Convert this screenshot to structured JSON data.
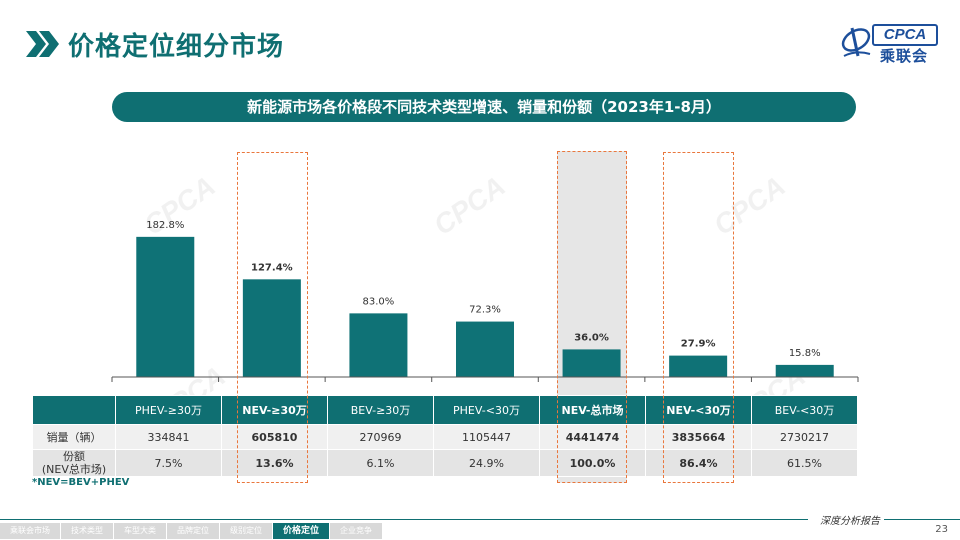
{
  "header": {
    "title": "价格定位细分市场"
  },
  "logo": {
    "text_en": "CPCA",
    "text_cn": "乘联会"
  },
  "subtitle": "新能源市场各价格段不同技术类型增速、销量和份额（2023年1-8月）",
  "chart_data": {
    "type": "bar",
    "title": "新能源市场各价格段不同技术类型增速、销量和份额（2023年1-8月）",
    "categories": [
      "PHEV-≥30万",
      "NEV-≥30万",
      "BEV-≥30万",
      "PHEV-<30万",
      "NEV-总市场",
      "NEV-<30万",
      "BEV-<30万"
    ],
    "values": [
      182.8,
      127.4,
      83.0,
      72.3,
      36.0,
      27.9,
      15.8
    ],
    "value_labels": [
      "182.8%",
      "127.4%",
      "83.0%",
      "72.3%",
      "36.0%",
      "27.9%",
      "15.8%"
    ],
    "bold": [
      false,
      true,
      false,
      false,
      true,
      true,
      false
    ],
    "ylim": [
      0,
      300
    ],
    "bar_color": "#0f7276",
    "grid": false
  },
  "table": {
    "headers": [
      "",
      "PHEV-≥30万",
      "NEV-≥30万",
      "BEV-≥30万",
      "PHEV-<30万",
      "NEV-总市场",
      "NEV-<30万",
      "BEV-<30万"
    ],
    "header_bold": [
      false,
      false,
      true,
      false,
      false,
      true,
      true,
      false
    ],
    "rows": [
      {
        "label": "销量（辆）",
        "cells": [
          "334841",
          "605810",
          "270969",
          "1105447",
          "4441474",
          "3835664",
          "2730217"
        ]
      },
      {
        "label1": "份额",
        "label2": "(NEV总市场)",
        "cells": [
          "7.5%",
          "13.6%",
          "6.1%",
          "24.9%",
          "100.0%",
          "86.4%",
          "61.5%"
        ]
      }
    ]
  },
  "note": "*NEV=BEV+PHEV",
  "footer": {
    "report": "深度分析报告",
    "page": "23",
    "nav": [
      "乘联会市场",
      "技术类型",
      "车型大类",
      "品牌定位",
      "级别定位",
      "价格定位",
      "企业竞争"
    ],
    "active_index": 5
  },
  "colors": {
    "primary": "#0f6f72",
    "highlight": "#e9773d"
  }
}
